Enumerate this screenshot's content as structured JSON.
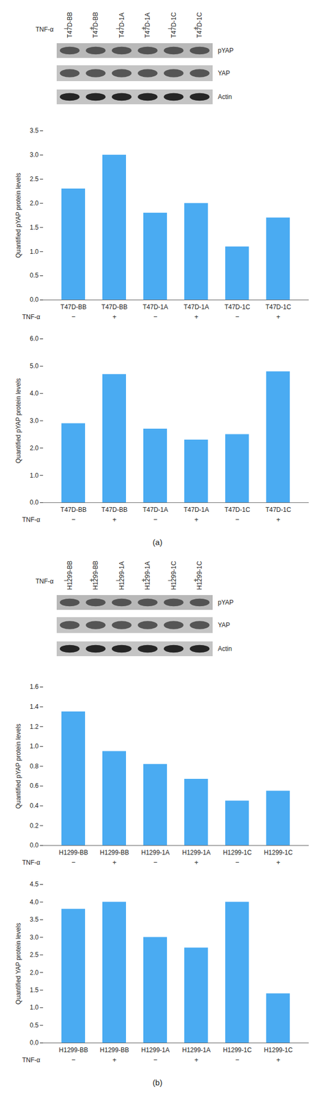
{
  "chart_data": [
    {
      "type": "bar",
      "categories": [
        "T47D-BB",
        "T47D-BB",
        "T47D-1A",
        "T47D-1A",
        "T47D-1C",
        "T47D-1C"
      ],
      "treatment_label": "TNF-α",
      "treatment": [
        "−",
        "+",
        "−",
        "+",
        "−",
        "+"
      ],
      "y_label": "Quantified pYAP protein levels",
      "values": [
        2.3,
        3.0,
        1.8,
        2.0,
        1.1,
        1.7
      ],
      "color": "#4aabf2",
      "ylim": [
        0,
        3.5
      ],
      "yticks": [
        0,
        0.5,
        1,
        1.5,
        2,
        2.5,
        3,
        3.5
      ],
      "grid": false
    },
    {
      "type": "bar",
      "categories": [
        "T47D-BB",
        "T47D-BB",
        "T47D-1A",
        "T47D-1A",
        "T47D-1C",
        "T47D-1C"
      ],
      "treatment_label": "TNF-α",
      "treatment": [
        "−",
        "+",
        "−",
        "+",
        "−",
        "+"
      ],
      "y_label": "Quantified pYAP protein levels",
      "values": [
        2.9,
        4.7,
        2.7,
        2.3,
        2.5,
        4.8
      ],
      "color": "#4aabf2",
      "ylim": [
        0,
        6
      ],
      "yticks": [
        0,
        1,
        2,
        3,
        4,
        5,
        6
      ],
      "grid": false
    },
    {
      "type": "bar",
      "categories": [
        "H1299-BB",
        "H1299-BB",
        "H1299-1A",
        "H1299-1A",
        "H1299-1C",
        "H1299-1C"
      ],
      "treatment_label": "TNF-α",
      "treatment": [
        "−",
        "+",
        "−",
        "+",
        "−",
        "+"
      ],
      "y_label": "Quantified pYAP protein levels",
      "values": [
        1.35,
        0.95,
        0.82,
        0.67,
        0.45,
        0.55
      ],
      "color": "#4aabf2",
      "ylim": [
        0,
        1.6
      ],
      "yticks": [
        0,
        0.2,
        0.4,
        0.6,
        0.8,
        1,
        1.2,
        1.4,
        1.6
      ],
      "grid": false
    },
    {
      "type": "bar",
      "categories": [
        "H1299-BB",
        "H1299-BB",
        "H1299-1A",
        "H1299-1A",
        "H1299-1C",
        "H1299-1C"
      ],
      "treatment_label": "TNF-α",
      "treatment": [
        "−",
        "+",
        "−",
        "+",
        "−",
        "+"
      ],
      "y_label": "Quantified YAP protein levels",
      "values": [
        3.8,
        4.0,
        3.0,
        2.7,
        4.0,
        1.4
      ],
      "color": "#4aabf2",
      "ylim": [
        0,
        4.5
      ],
      "yticks": [
        0,
        0.5,
        1,
        1.5,
        2,
        2.5,
        3,
        3.5,
        4,
        4.5
      ],
      "grid": false
    }
  ],
  "blots": [
    {
      "lanes": [
        "T47D-BB",
        "T47D-BB",
        "T47D-1A",
        "T47D-1A",
        "T47D-1C",
        "T47D-1C"
      ],
      "treatment_label": "TNF-α",
      "treatment": [
        "−",
        "+",
        "−",
        "+",
        "−",
        "+"
      ],
      "rows": [
        "pYAP",
        "YAP",
        "Actin"
      ]
    },
    {
      "lanes": [
        "H1299-BB",
        "H1299-BB",
        "H1299-1A",
        "H1299-1A",
        "H1299-1C",
        "H1299-1C"
      ],
      "treatment_label": "TNF-α",
      "treatment": [
        "−",
        "+",
        "−",
        "+",
        "−",
        "+"
      ],
      "rows": [
        "pYAP",
        "YAP",
        "Actin"
      ]
    }
  ],
  "panel_labels": [
    "(a)",
    "(b)"
  ]
}
